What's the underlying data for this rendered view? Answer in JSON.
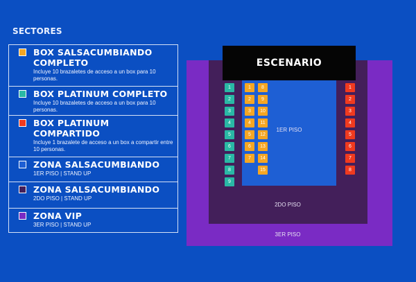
{
  "sectores": {
    "heading": "SECTORES",
    "items": [
      {
        "title": "BOX SALSACUMBIANDO COMPLETO",
        "desc": "Incluye 10 brazaletes de acceso a un box para 10 personas.",
        "color": "#f5a623"
      },
      {
        "title": "BOX PLATINUM COMPLETO",
        "desc": "Incluye 10 brazaletes de acceso a un box para 10 personas.",
        "color": "#2ab8a5"
      },
      {
        "title": "BOX PLATINUM COMPARTIDO",
        "desc": "Incluye 1 brazalete de acceso a un box a compartir entre 10 personas.",
        "color": "#f03a1f"
      },
      {
        "title": "ZONA SALSACUMBIANDO",
        "desc": "1ER PISO | STAND UP",
        "color": "#1e5fd4"
      },
      {
        "title": "ZONA SALSACUMBIANDO",
        "desc": "2DO PISO | STAND UP",
        "color": "#431f5a"
      },
      {
        "title": "ZONA VIP",
        "desc": "3ER PISO | STAND UP",
        "color": "#7a2bc4"
      }
    ]
  },
  "map": {
    "stage": "ESCENARIO",
    "zones": {
      "piso1": "1ER PISO",
      "piso2": "2DO PISO",
      "piso3": "3ER PISO"
    },
    "box_groups": [
      {
        "name": "teal",
        "color": "#2ab8a5",
        "labels": [
          "1",
          "2",
          "3",
          "4",
          "5",
          "6",
          "7",
          "8",
          "9"
        ]
      },
      {
        "name": "orange-a",
        "color": "#f5a623",
        "labels": [
          "1",
          "2",
          "3",
          "4",
          "5",
          "6",
          "7"
        ]
      },
      {
        "name": "orange-b",
        "color": "#f5a623",
        "labels": [
          "8",
          "9",
          "10",
          "11",
          "12",
          "13",
          "14",
          "15"
        ]
      },
      {
        "name": "red",
        "color": "#f03a1f",
        "labels": [
          "1",
          "2",
          "3",
          "4",
          "5",
          "6",
          "7",
          "8"
        ]
      }
    ]
  }
}
